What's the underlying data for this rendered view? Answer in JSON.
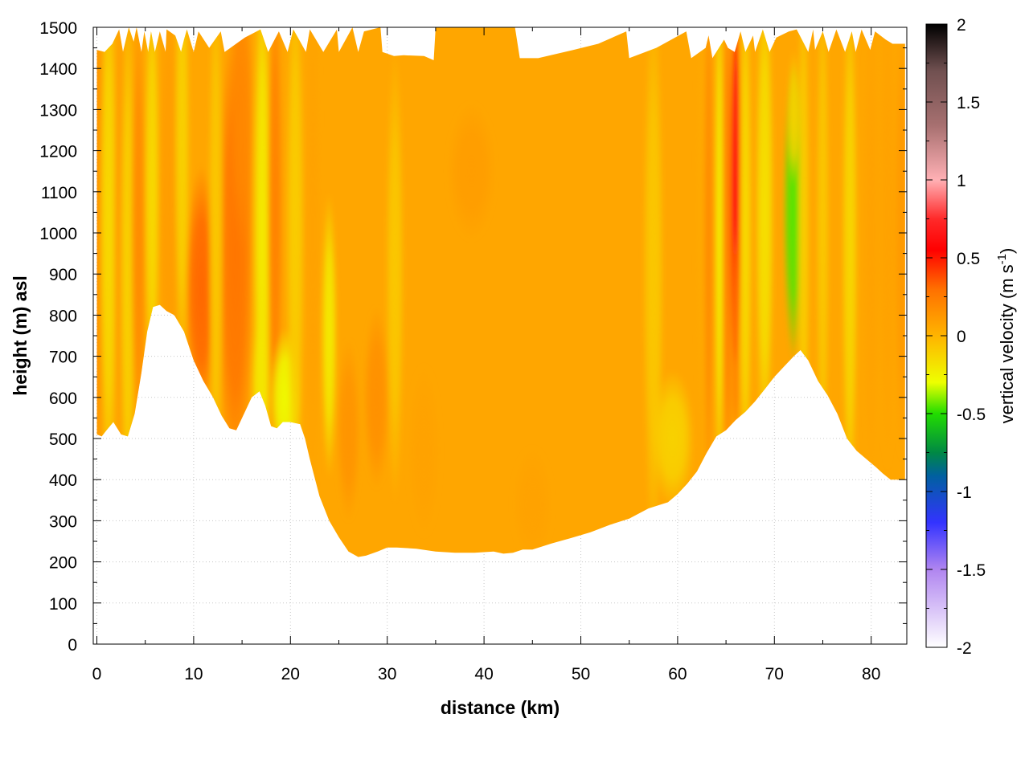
{
  "chart_data": {
    "type": "heatmap",
    "title": "",
    "xlabel": "distance (km)",
    "ylabel": "height (m) asl",
    "xlim": [
      0,
      84
    ],
    "ylim": [
      0,
      1500
    ],
    "x_ticks": [
      0,
      10,
      20,
      30,
      40,
      50,
      60,
      70,
      80
    ],
    "y_ticks": [
      0,
      100,
      200,
      300,
      400,
      500,
      600,
      700,
      800,
      900,
      1000,
      1100,
      1200,
      1300,
      1400,
      1500
    ],
    "grid": true,
    "colorbar": {
      "label": "vertical velocity (m s",
      "label_superscript": "-1",
      "label_suffix": ")",
      "range": [
        -2,
        2
      ],
      "ticks": [
        -2,
        -1.5,
        -1,
        -0.5,
        0,
        0.5,
        1,
        1.5,
        2
      ],
      "colors": [
        {
          "value": -2.0,
          "color": "#ffffff"
        },
        {
          "value": -1.5,
          "color": "#b085f0"
        },
        {
          "value": -1.2,
          "color": "#3333ff"
        },
        {
          "value": -0.9,
          "color": "#0060a0"
        },
        {
          "value": -0.75,
          "color": "#008844"
        },
        {
          "value": -0.5,
          "color": "#22dd00"
        },
        {
          "value": -0.3,
          "color": "#eeff00"
        },
        {
          "value": 0.0,
          "color": "#ffb400"
        },
        {
          "value": 0.3,
          "color": "#ff7000"
        },
        {
          "value": 0.55,
          "color": "#ff0000"
        },
        {
          "value": 0.75,
          "color": "#ff2a2a"
        },
        {
          "value": 1.0,
          "color": "#ffb0b4"
        },
        {
          "value": 1.35,
          "color": "#a77070"
        },
        {
          "value": 1.7,
          "color": "#705050"
        },
        {
          "value": 2.0,
          "color": "#000000"
        }
      ]
    },
    "terrain": {
      "x": [
        0,
        0.5,
        1,
        1.7,
        2.5,
        3.2,
        3.9,
        4.6,
        5.2,
        5.8,
        6.5,
        7.2,
        8,
        9,
        10,
        11,
        12,
        12.9,
        13.7,
        14.4,
        15,
        16,
        16.8,
        17.4,
        18,
        18.6,
        19.2,
        20,
        21,
        21.5,
        22,
        23,
        24,
        25,
        26,
        27,
        27.8,
        29,
        30,
        31,
        33,
        35,
        37,
        39,
        41,
        42,
        43,
        44,
        45,
        47,
        49,
        51,
        53,
        55,
        57,
        59,
        60,
        61,
        62,
        63,
        64,
        65,
        66,
        67,
        68,
        69,
        70,
        71,
        72,
        72.7,
        73.5,
        74.5,
        75.5,
        76.5,
        77.5,
        78.5,
        79.5,
        80.5,
        81.2,
        82,
        83.5
      ],
      "y": [
        510,
        505,
        520,
        540,
        510,
        505,
        560,
        660,
        760,
        820,
        825,
        810,
        800,
        760,
        690,
        640,
        600,
        555,
        525,
        520,
        550,
        600,
        615,
        580,
        530,
        525,
        540,
        540,
        535,
        500,
        450,
        360,
        300,
        260,
        225,
        212,
        215,
        225,
        235,
        235,
        232,
        225,
        222,
        222,
        225,
        220,
        222,
        230,
        230,
        245,
        258,
        272,
        290,
        305,
        330,
        345,
        365,
        390,
        420,
        465,
        505,
        520,
        545,
        565,
        590,
        620,
        650,
        675,
        700,
        715,
        690,
        640,
        605,
        560,
        500,
        470,
        450,
        430,
        415,
        400,
        400
      ]
    },
    "top_boundary": {
      "x": [
        0,
        0.8,
        1.6,
        2.3,
        2.7,
        3.3,
        3.8,
        4.1,
        4.6,
        4.9,
        5.3,
        5.6,
        6.0,
        6.5,
        7.1,
        7.2,
        8.1,
        8.7,
        9.0,
        9.3,
        10.0,
        10.5,
        11.6,
        12.8,
        13.2,
        15.3,
        16.9,
        17.7,
        18.8,
        19.7,
        20.3,
        21.6,
        22.0,
        23.4,
        24.8,
        25.0,
        26.4,
        27.0,
        27.6,
        29.3,
        29.5,
        30.7,
        31.7,
        33.8,
        34.8,
        35.0,
        43.2,
        43.7,
        45.6,
        49.2,
        51.8,
        54.7,
        55.0,
        57.8,
        60.9,
        61.4,
        62.9,
        63.2,
        63.6,
        64.8,
        65.2,
        65.9,
        66.5,
        67.0,
        67.8,
        68.0,
        68.8,
        69.5,
        70.2,
        71.5,
        72.3,
        73.5,
        74.0,
        74.2,
        75.0,
        75.6,
        76.4,
        77.3,
        78.0,
        78.4,
        79.0,
        79.9,
        80.4,
        81.5,
        82.2,
        83.5
      ],
      "y": [
        1445,
        1440,
        1460,
        1495,
        1440,
        1500,
        1465,
        1500,
        1440,
        1490,
        1440,
        1490,
        1440,
        1490,
        1440,
        1495,
        1480,
        1440,
        1470,
        1495,
        1440,
        1490,
        1450,
        1490,
        1440,
        1475,
        1495,
        1440,
        1490,
        1440,
        1495,
        1440,
        1495,
        1440,
        1495,
        1440,
        1500,
        1440,
        1490,
        1500,
        1440,
        1430,
        1432,
        1430,
        1420,
        1500,
        1500,
        1425,
        1425,
        1445,
        1460,
        1490,
        1425,
        1450,
        1490,
        1425,
        1450,
        1480,
        1425,
        1470,
        1450,
        1440,
        1490,
        1440,
        1480,
        1440,
        1495,
        1440,
        1475,
        1490,
        1495,
        1440,
        1495,
        1445,
        1490,
        1440,
        1495,
        1440,
        1490,
        1440,
        1495,
        1445,
        1490,
        1470,
        1460,
        1460
      ]
    },
    "features": [
      {
        "x": 0.0,
        "y": 1000,
        "sx": 1.0,
        "sy": 500,
        "value": 0.15
      },
      {
        "x": 1.2,
        "y": 1000,
        "sx": 0.7,
        "sy": 500,
        "value": -0.15
      },
      {
        "x": 2.5,
        "y": 1000,
        "sx": 0.6,
        "sy": 500,
        "value": 0.1
      },
      {
        "x": 3.2,
        "y": 900,
        "sx": 0.6,
        "sy": 500,
        "value": -0.12
      },
      {
        "x": 4.3,
        "y": 1000,
        "sx": 0.6,
        "sy": 400,
        "value": 0.18
      },
      {
        "x": 5.7,
        "y": 1100,
        "sx": 0.6,
        "sy": 400,
        "value": -0.15
      },
      {
        "x": 7.5,
        "y": 1100,
        "sx": 0.9,
        "sy": 400,
        "value": 0.1
      },
      {
        "x": 8.8,
        "y": 1200,
        "sx": 0.6,
        "sy": 400,
        "value": -0.12
      },
      {
        "x": 10.8,
        "y": 860,
        "sx": 1.2,
        "sy": 220,
        "value": 0.32
      },
      {
        "x": 14.3,
        "y": 950,
        "sx": 1.4,
        "sy": 420,
        "value": 0.28
      },
      {
        "x": 12.3,
        "y": 1000,
        "sx": 0.6,
        "sy": 500,
        "value": -0.08
      },
      {
        "x": 15.0,
        "y": 1300,
        "sx": 0.9,
        "sy": 250,
        "value": 0.2
      },
      {
        "x": 17.1,
        "y": 1000,
        "sx": 0.7,
        "sy": 500,
        "value": -0.22
      },
      {
        "x": 16.9,
        "y": 620,
        "sx": 0.7,
        "sy": 140,
        "value": -0.2
      },
      {
        "x": 18.4,
        "y": 1050,
        "sx": 0.6,
        "sy": 450,
        "value": 0.22
      },
      {
        "x": 19.5,
        "y": 600,
        "sx": 1.2,
        "sy": 120,
        "value": -0.28
      },
      {
        "x": 20.5,
        "y": 1000,
        "sx": 0.7,
        "sy": 500,
        "value": -0.1
      },
      {
        "x": 22.3,
        "y": 1000,
        "sx": 0.6,
        "sy": 500,
        "value": 0.08
      },
      {
        "x": 24.0,
        "y": 750,
        "sx": 0.6,
        "sy": 250,
        "value": -0.22
      },
      {
        "x": 26.0,
        "y": 520,
        "sx": 0.9,
        "sy": 160,
        "value": 0.14
      },
      {
        "x": 28.9,
        "y": 600,
        "sx": 1.0,
        "sy": 160,
        "value": 0.16
      },
      {
        "x": 30.8,
        "y": 900,
        "sx": 0.7,
        "sy": 400,
        "value": -0.08
      },
      {
        "x": 33.8,
        "y": 470,
        "sx": 1.2,
        "sy": 150,
        "value": 0.08
      },
      {
        "x": 38.7,
        "y": 1150,
        "sx": 1.8,
        "sy": 120,
        "value": 0.1
      },
      {
        "x": 45.0,
        "y": 340,
        "sx": 1.5,
        "sy": 100,
        "value": 0.08
      },
      {
        "x": 57.5,
        "y": 900,
        "sx": 0.8,
        "sy": 500,
        "value": -0.08
      },
      {
        "x": 59.5,
        "y": 500,
        "sx": 1.6,
        "sy": 120,
        "value": -0.12
      },
      {
        "x": 62.6,
        "y": 1050,
        "sx": 0.5,
        "sy": 450,
        "value": 0.05
      },
      {
        "x": 63.2,
        "y": 1000,
        "sx": 0.4,
        "sy": 500,
        "value": 0.18
      },
      {
        "x": 64.3,
        "y": 1000,
        "sx": 0.3,
        "sy": 500,
        "value": -0.25
      },
      {
        "x": 65.2,
        "y": 1000,
        "sx": 0.4,
        "sy": 500,
        "value": 0.22
      },
      {
        "x": 66.0,
        "y": 1100,
        "sx": 0.45,
        "sy": 380,
        "value": 0.6
      },
      {
        "x": 66.0,
        "y": 620,
        "sx": 0.3,
        "sy": 80,
        "value": 0.2
      },
      {
        "x": 66.0,
        "y": 850,
        "sx": 0.12,
        "sy": 140,
        "value": 0.2
      },
      {
        "x": 67.0,
        "y": 1000,
        "sx": 0.5,
        "sy": 500,
        "value": -0.15
      },
      {
        "x": 69.0,
        "y": 1050,
        "sx": 0.7,
        "sy": 450,
        "value": -0.18
      },
      {
        "x": 72.0,
        "y": 1050,
        "sx": 0.8,
        "sy": 260,
        "value": -0.45
      },
      {
        "x": 72.0,
        "y": 1280,
        "sx": 0.5,
        "sy": 120,
        "value": -0.12
      },
      {
        "x": 73.0,
        "y": 1000,
        "sx": 0.5,
        "sy": 500,
        "value": -0.1
      },
      {
        "x": 75.0,
        "y": 1000,
        "sx": 0.5,
        "sy": 500,
        "value": -0.08
      },
      {
        "x": 77.8,
        "y": 950,
        "sx": 0.6,
        "sy": 500,
        "value": -0.14
      },
      {
        "x": 80.0,
        "y": 1000,
        "sx": 0.6,
        "sy": 450,
        "value": 0.08
      },
      {
        "x": 81.7,
        "y": 1050,
        "sx": 0.6,
        "sy": 450,
        "value": 0.08
      },
      {
        "x": 83.2,
        "y": 1000,
        "sx": 0.6,
        "sy": 400,
        "value": 0.12
      }
    ],
    "background_value": 0.06
  }
}
